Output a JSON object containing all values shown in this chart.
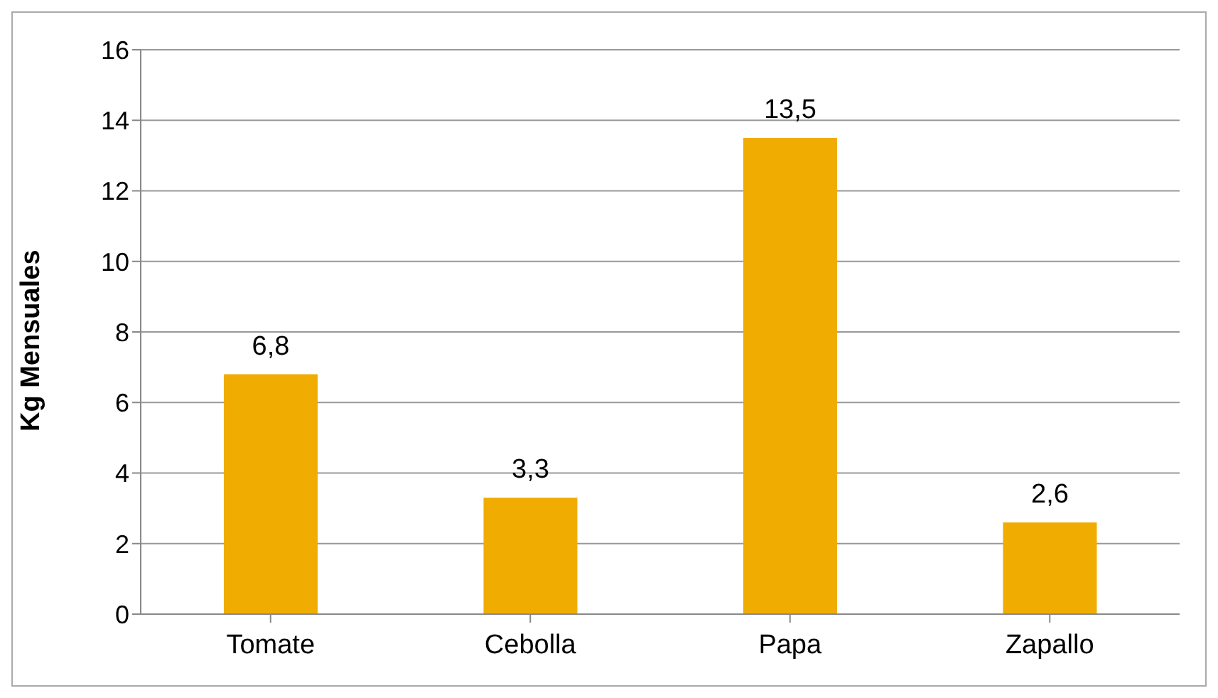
{
  "chart_data": {
    "type": "bar",
    "ylabel": "Kg Mensuales",
    "categories": [
      "Tomate",
      "Cebolla",
      "Papa",
      "Zapallo"
    ],
    "values": [
      6.8,
      3.3,
      13.5,
      2.6
    ],
    "color": "#f0ac00",
    "value_labels": [
      "6,8",
      "3,3",
      "13,5",
      "2,6"
    ],
    "ylim": [
      0,
      16
    ],
    "yticks": [
      0,
      2,
      4,
      6,
      8,
      10,
      12,
      14,
      16
    ],
    "grid": "y"
  }
}
